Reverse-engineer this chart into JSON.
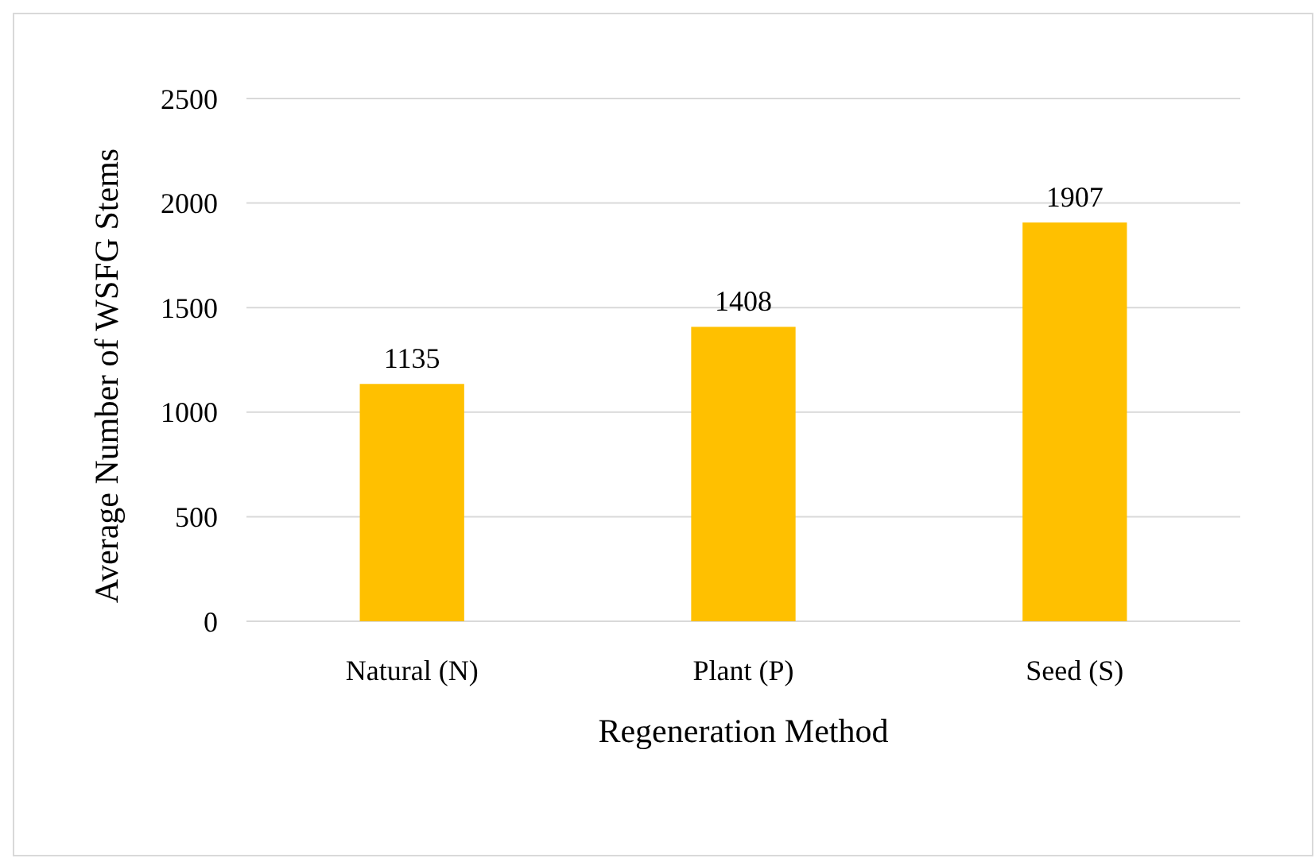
{
  "chart_data": {
    "type": "bar",
    "xlabel": "Regeneration Method",
    "ylabel": "Average Number of WSFG Stems",
    "categories": [
      "Natural (N)",
      "Plant (P)",
      "Seed (S)"
    ],
    "values": [
      1135,
      1408,
      1907
    ],
    "color": "#ffc000",
    "ylim": [
      0,
      2500
    ],
    "yticks": [
      0,
      500,
      1000,
      1500,
      2000,
      2500
    ],
    "grid": "y",
    "data_labels": true
  }
}
